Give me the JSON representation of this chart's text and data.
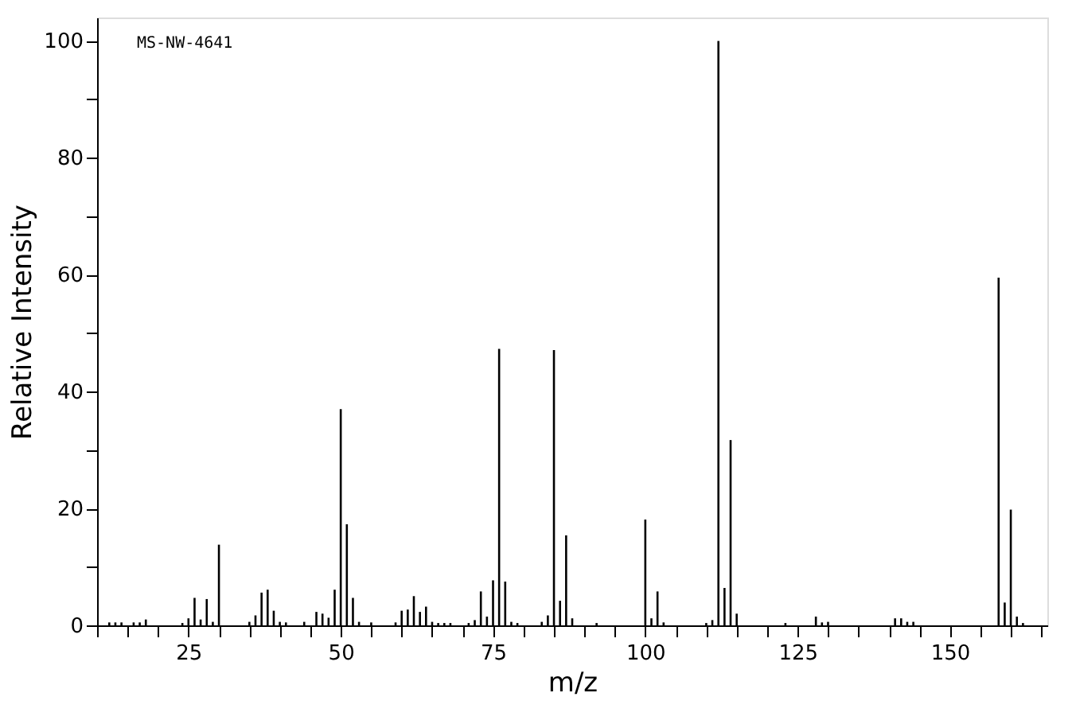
{
  "chart_data": {
    "type": "bar",
    "xlabel": "m/z",
    "ylabel": "Relative Intensity",
    "annotations": [
      "MS-NW-4641"
    ],
    "x": [
      12,
      13,
      14,
      16,
      17,
      18,
      24,
      25,
      26,
      27,
      28,
      29,
      30,
      35,
      36,
      37,
      38,
      39,
      40,
      41,
      44,
      46,
      47,
      48,
      49,
      50,
      51,
      52,
      53,
      55,
      59,
      60,
      61,
      62,
      63,
      64,
      65,
      66,
      67,
      68,
      71,
      72,
      73,
      74,
      75,
      76,
      77,
      78,
      79,
      83,
      84,
      85,
      86,
      87,
      88,
      92,
      100,
      101,
      102,
      103,
      110,
      111,
      112,
      113,
      114,
      115,
      123,
      128,
      129,
      130,
      141,
      142,
      143,
      144,
      158,
      159,
      160,
      161,
      162
    ],
    "values": [
      0.5,
      0.5,
      0.5,
      0.5,
      0.5,
      1,
      0.4,
      1.2,
      4.7,
      1,
      4.5,
      0.6,
      13.8,
      0.6,
      1.7,
      5.6,
      6.1,
      2.5,
      0.6,
      0.5,
      0.6,
      2.3,
      2,
      1.3,
      6.1,
      37,
      17.3,
      4.7,
      0.6,
      0.5,
      0.5,
      2.5,
      2.7,
      5,
      2.3,
      3.2,
      0.6,
      0.4,
      0.4,
      0.4,
      0.4,
      0.9,
      5.8,
      1.5,
      7.7,
      47.3,
      7.5,
      0.6,
      0.4,
      0.6,
      1.7,
      47.1,
      4.2,
      15.4,
      1.2,
      0.4,
      18.1,
      1.2,
      5.8,
      0.5,
      0.4,
      0.9,
      100,
      6.4,
      31.7,
      2,
      0.4,
      1.5,
      0.5,
      0.6,
      1.2,
      1.2,
      0.6,
      0.6,
      59.5,
      3.9,
      19.8,
      1.5,
      0.4
    ],
    "color": "#000000",
    "xlim": [
      10,
      166
    ],
    "xticks": [
      {
        "value": 10,
        "label": null
      },
      {
        "value": 15,
        "label": null
      },
      {
        "value": 20,
        "label": null
      },
      25,
      {
        "value": 30,
        "label": null
      },
      {
        "value": 35,
        "label": null
      },
      {
        "value": 40,
        "label": null
      },
      {
        "value": 45,
        "label": null
      },
      50,
      {
        "value": 55,
        "label": null
      },
      {
        "value": 60,
        "label": null
      },
      {
        "value": 65,
        "label": null
      },
      {
        "value": 70,
        "label": null
      },
      75,
      {
        "value": 80,
        "label": null
      },
      {
        "value": 85,
        "label": null
      },
      {
        "value": 90,
        "label": null
      },
      {
        "value": 95,
        "label": null
      },
      100,
      {
        "value": 105,
        "label": null
      },
      {
        "value": 110,
        "label": null
      },
      {
        "value": 115,
        "label": null
      },
      {
        "value": 120,
        "label": null
      },
      125,
      {
        "value": 130,
        "label": null
      },
      {
        "value": 135,
        "label": null
      },
      {
        "value": 140,
        "label": null
      },
      {
        "value": 145,
        "label": null
      },
      150,
      {
        "value": 155,
        "label": null
      },
      {
        "value": 160,
        "label": null
      },
      {
        "value": 165,
        "label": null
      }
    ],
    "ylim": [
      0,
      104
    ],
    "yticks": [
      0,
      {
        "value": 10,
        "label": null
      },
      20,
      {
        "value": 30,
        "label": null
      },
      40,
      {
        "value": 50,
        "label": null
      },
      60,
      {
        "value": 70,
        "label": null
      },
      80,
      {
        "value": 90,
        "label": null
      },
      100
    ],
    "grid": false
  }
}
